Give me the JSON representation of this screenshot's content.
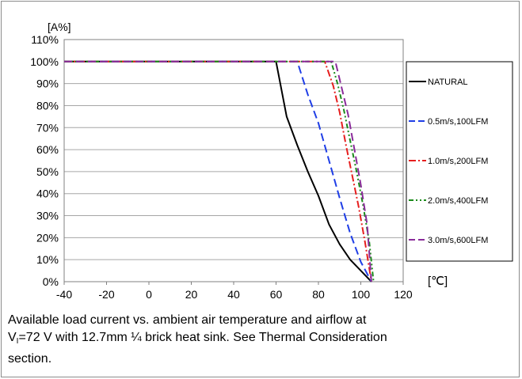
{
  "chart_data": {
    "type": "line",
    "title": "",
    "ylabel": "[A%]",
    "xlabel": "[℃]",
    "xlim": [
      -40,
      120
    ],
    "ylim": [
      0,
      110
    ],
    "x_ticks": [
      "-40",
      "-20",
      "0",
      "20",
      "40",
      "60",
      "80",
      "100",
      "120"
    ],
    "y_ticks": [
      "0%",
      "10%",
      "20%",
      "30%",
      "40%",
      "50%",
      "60%",
      "70%",
      "80%",
      "90%",
      "100%",
      "110%"
    ],
    "grid": "horizontal",
    "legend_position": "right",
    "series": [
      {
        "name": "NATURAL",
        "color": "#000000",
        "dash": "solid",
        "x": [
          -40,
          60,
          65,
          70,
          75,
          80,
          85,
          90,
          95,
          100,
          105
        ],
        "y": [
          100,
          100,
          75,
          62,
          50,
          39,
          26,
          17,
          10,
          5,
          0
        ]
      },
      {
        "name": "0.5m/s,100LFM",
        "color": "#1f3ee6",
        "dash": "long-dash",
        "x": [
          -40,
          70,
          75,
          80,
          85,
          90,
          95,
          100,
          105
        ],
        "y": [
          100,
          100,
          85,
          72,
          55,
          38,
          22,
          9,
          0
        ]
      },
      {
        "name": "1.0m/s,200LFM",
        "color": "#e61e1e",
        "dash": "dash-dot",
        "x": [
          -40,
          83,
          87,
          90,
          93,
          96,
          99,
          102,
          105
        ],
        "y": [
          100,
          100,
          89,
          77,
          62,
          48,
          34,
          18,
          0
        ]
      },
      {
        "name": "2.0m/s,400LFM",
        "color": "#1a8a1a",
        "dash": "dash-dot-dot",
        "x": [
          -40,
          86,
          89,
          92,
          95,
          98,
          101,
          104,
          106
        ],
        "y": [
          100,
          100,
          90,
          78,
          64,
          50,
          35,
          18,
          0
        ]
      },
      {
        "name": "3.0m/s,600LFM",
        "color": "#8a2b9a",
        "dash": "long-dash",
        "x": [
          -40,
          88,
          91,
          94,
          97,
          100,
          103,
          105
        ],
        "y": [
          100,
          100,
          88,
          76,
          60,
          44,
          26,
          0
        ]
      }
    ]
  },
  "caption": {
    "line1": "Available load current vs. ambient air temperature and airflow at",
    "v_label": "V",
    "v_sub": "I",
    "line2_rest": "=72 V with 12.7mm ¼ brick heat sink. See Thermal Consideration",
    "line3": "section."
  }
}
